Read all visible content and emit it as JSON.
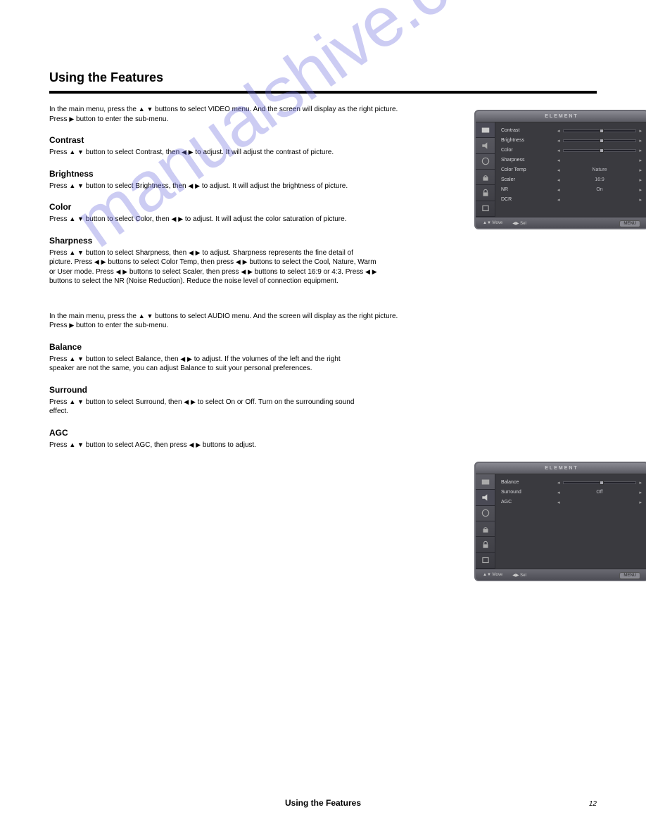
{
  "watermark": "manualshive.com",
  "heading": "Using the Features",
  "video_intro_a": "In the main menu, press the ",
  "video_intro_b": " buttons to select VIDEO menu. And the screen will display as the right picture. Press ",
  "video_intro_c": " button to enter the sub-menu.",
  "items": {
    "contrast": {
      "title": "Contrast",
      "body_a": "Press ",
      "body_b": " button to select Contrast, then ",
      "body_c": " to adjust. It will adjust the contrast of picture."
    },
    "brightness": {
      "title": "Brightness",
      "body_a": "Press ",
      "body_b": " button to select Brightness, then ",
      "body_c": " to adjust. It will adjust the brightness of picture."
    },
    "color": {
      "title": "Color",
      "body_a": "Press ",
      "body_b": " button to select Color, then ",
      "body_c": " to adjust. It will adjust the color saturation of picture."
    },
    "sharpness": {
      "title": "Sharpness",
      "body_a": "Press ",
      "body_b": " button to select Sharpness, then ",
      "body_c": " to adjust. Sharpness represents the fine detail of picture. Press ",
      "body_d": " buttons to select Color Temp, then press",
      "body_e": " buttons to select the Cool, Nature, Warm or User mode. Press",
      "body_f": " buttons to select Scaler, then press ",
      "body_g": " buttons to select 16:9 or 4:3. Press ",
      "body_h": " buttons to select the NR (Noise Reduction). Reduce the noise level of connection equipment."
    }
  },
  "audio_intro_a": "In the main menu, press the ",
  "audio_intro_b": " buttons to select AUDIO menu. And the screen will display as the right picture. Press ",
  "audio_intro_c": " button to enter the sub-menu.",
  "balance": {
    "title": "Balance",
    "body_a": "Press ",
    "body_b": " button to select Balance, then ",
    "body_c": " to adjust. If the volumes of the left and the right speaker are not the same, you can adjust Balance to suit your personal preferences."
  },
  "surround": {
    "title": "Surround",
    "body_a": "Press ",
    "body_b": " button to select Surround, then ",
    "body_c": " to select On or Off. Turn on the surrounding sound effect."
  },
  "agc": {
    "title": "AGC",
    "body_a": "Press ",
    "body_b": " button to select AGC, then press ",
    "body_c": " buttons to adjust."
  },
  "osd1": {
    "brand": "ELEMENT",
    "rows": [
      {
        "label": "Contrast",
        "type": "slider",
        "knob": 50
      },
      {
        "label": "Brightness",
        "type": "slider",
        "knob": 50
      },
      {
        "label": "Color",
        "type": "slider",
        "knob": 50
      },
      {
        "label": "Sharpness",
        "type": "select",
        "value": ""
      },
      {
        "label": "Color Temp",
        "type": "select",
        "value": "Nature"
      },
      {
        "label": "Scaler",
        "type": "select",
        "value": "16:9"
      },
      {
        "label": "NR",
        "type": "select",
        "value": "On"
      },
      {
        "label": "DCR",
        "type": "select",
        "value": ""
      }
    ],
    "footer_move": "Move",
    "footer_sel": "Sel",
    "footer_menu": "MENU"
  },
  "osd2": {
    "brand": "ELEMENT",
    "rows": [
      {
        "label": "Balance",
        "type": "slider",
        "knob": 50
      },
      {
        "label": "Surround",
        "type": "select",
        "value": "Off"
      },
      {
        "label": "AGC",
        "type": "select",
        "value": ""
      }
    ],
    "footer_move": "Move",
    "footer_sel": "Sel",
    "footer_menu": "MENU"
  },
  "footer_label": "Using the Features",
  "page_number": "12"
}
